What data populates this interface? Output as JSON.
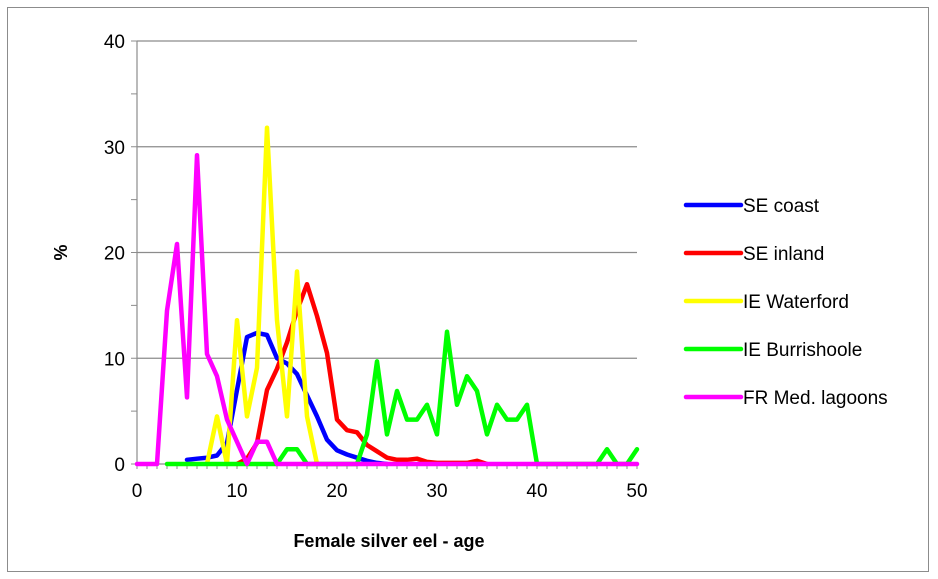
{
  "chart_data": {
    "type": "line",
    "title": "",
    "xlabel": "Female silver eel - age",
    "ylabel": "%",
    "xlim": [
      0,
      50
    ],
    "ylim": [
      0,
      40
    ],
    "xticks": [
      0,
      10,
      20,
      30,
      40,
      50
    ],
    "yticks": [
      0,
      10,
      20,
      30,
      40
    ],
    "grid": "horizontal",
    "legend_position": "right",
    "series": [
      {
        "name": "SE coast",
        "color": "#0000ff",
        "x": [
          5,
          6,
          7,
          8,
          9,
          10,
          11,
          12,
          13,
          14,
          15,
          16,
          17,
          18,
          19,
          20,
          21,
          22,
          23,
          24,
          25
        ],
        "y": [
          0.4,
          0.5,
          0.6,
          0.8,
          2,
          7,
          12,
          12.4,
          12.2,
          10,
          9.5,
          8.5,
          6.5,
          4.5,
          2.3,
          1.3,
          0.9,
          0.6,
          0.3,
          0.1,
          0
        ]
      },
      {
        "name": "SE inland",
        "color": "#ff0000",
        "x": [
          10,
          11,
          12,
          13,
          14,
          15,
          16,
          17,
          18,
          19,
          20,
          21,
          22,
          23,
          24,
          25,
          26,
          27,
          28,
          29,
          30,
          31,
          32,
          33,
          34,
          35
        ],
        "y": [
          0,
          0.5,
          2,
          7,
          9,
          11.5,
          14.5,
          17,
          14,
          10.5,
          4.2,
          3.2,
          3,
          1.8,
          1.2,
          0.6,
          0.4,
          0.4,
          0.5,
          0.2,
          0.1,
          0.1,
          0.1,
          0.1,
          0.3,
          0
        ]
      },
      {
        "name": "IE Waterford",
        "color": "#ffff00",
        "x": [
          7,
          8,
          9,
          10,
          11,
          12,
          13,
          14,
          15,
          16,
          17,
          18
        ],
        "y": [
          0,
          4.5,
          0,
          13.6,
          4.5,
          9.1,
          31.8,
          13.6,
          4.5,
          18.2,
          4.5,
          0
        ]
      },
      {
        "name": "IE Burrishoole",
        "color": "#00ff00",
        "x": [
          3,
          4,
          5,
          6,
          7,
          8,
          9,
          10,
          11,
          12,
          13,
          14,
          15,
          16,
          17,
          18,
          19,
          20,
          21,
          22,
          23,
          24,
          25,
          26,
          27,
          28,
          29,
          30,
          31,
          32,
          33,
          34,
          35,
          36,
          37,
          38,
          39,
          40,
          41,
          42,
          43,
          44,
          45,
          46,
          47,
          48,
          49,
          50
        ],
        "y": [
          0,
          0,
          0,
          0,
          0,
          0,
          0,
          0,
          0,
          0,
          0,
          0,
          1.4,
          1.4,
          0,
          0,
          0,
          0,
          0,
          0,
          2.8,
          9.7,
          2.8,
          6.9,
          4.2,
          4.2,
          5.6,
          2.8,
          12.5,
          5.6,
          8.3,
          6.9,
          2.8,
          5.6,
          4.2,
          4.2,
          5.6,
          0,
          0,
          0,
          0,
          0,
          0,
          0,
          1.4,
          0,
          0,
          1.4
        ]
      },
      {
        "name": "FR Med. lagoons",
        "color": "#ff00ff",
        "x": [
          0,
          1,
          2,
          3,
          4,
          5,
          6,
          7,
          8,
          9,
          10,
          11,
          12,
          13,
          14,
          15,
          16,
          17,
          18,
          19,
          20,
          21,
          22,
          23,
          24,
          25,
          26,
          27,
          28,
          29,
          30,
          31,
          32,
          33,
          34,
          35,
          36,
          37,
          38,
          39,
          40,
          41,
          42,
          43,
          44,
          45,
          46,
          47,
          48,
          49,
          50
        ],
        "y": [
          0,
          0,
          0,
          14.5,
          20.8,
          6.3,
          29.2,
          10.4,
          8.3,
          4.2,
          2.1,
          0,
          2.1,
          2.1,
          0,
          0,
          0,
          0,
          0,
          0,
          0,
          0,
          0,
          0,
          0,
          0,
          0,
          0,
          0,
          0,
          0,
          0,
          0,
          0,
          0,
          0,
          0,
          0,
          0,
          0,
          0,
          0,
          0,
          0,
          0,
          0,
          0,
          0,
          0,
          0,
          0
        ]
      }
    ]
  }
}
